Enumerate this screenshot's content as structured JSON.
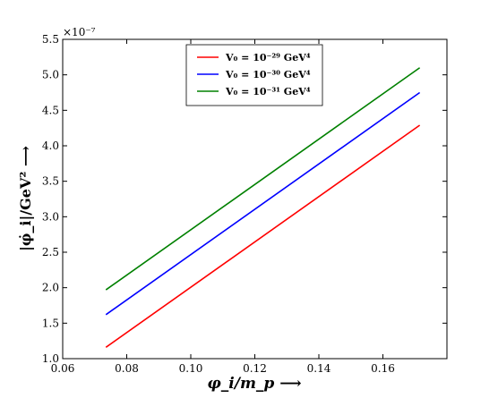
{
  "chart_data": {
    "type": "line",
    "xlabel": "φ_i/m_p ⟶",
    "ylabel": "|φ̇_i|/GeV² ⟶",
    "y_multiplier": "×10⁻⁷",
    "xlim": [
      0.06,
      0.18
    ],
    "ylim": [
      1.0,
      5.5
    ],
    "xticks": [
      0.06,
      0.08,
      0.1,
      0.12,
      0.14,
      0.16
    ],
    "xtick_labels": [
      "0.06",
      "0.08",
      "0.10",
      "0.12",
      "0.14",
      "0.16"
    ],
    "yticks": [
      1.0,
      1.5,
      2.0,
      2.5,
      3.0,
      3.5,
      4.0,
      4.5,
      5.0,
      5.5
    ],
    "ytick_labels": [
      "1.0",
      "1.5",
      "2.0",
      "2.5",
      "3.0",
      "3.5",
      "4.0",
      "4.5",
      "5.0",
      "5.5"
    ],
    "grid": false,
    "legend_position": "top-center",
    "series": [
      {
        "name": "V₀ = 10⁻²⁹ GeV⁴",
        "color": "#ff0000",
        "x": [
          0.0735,
          0.1715
        ],
        "y": [
          1.16,
          4.29
        ]
      },
      {
        "name": "V₀ = 10⁻³⁰ GeV⁴",
        "color": "#0000ff",
        "x": [
          0.0735,
          0.1715
        ],
        "y": [
          1.62,
          4.75
        ]
      },
      {
        "name": "V₀ = 10⁻³¹ GeV⁴",
        "color": "#008000",
        "x": [
          0.0735,
          0.1715
        ],
        "y": [
          1.97,
          5.1
        ]
      }
    ]
  }
}
